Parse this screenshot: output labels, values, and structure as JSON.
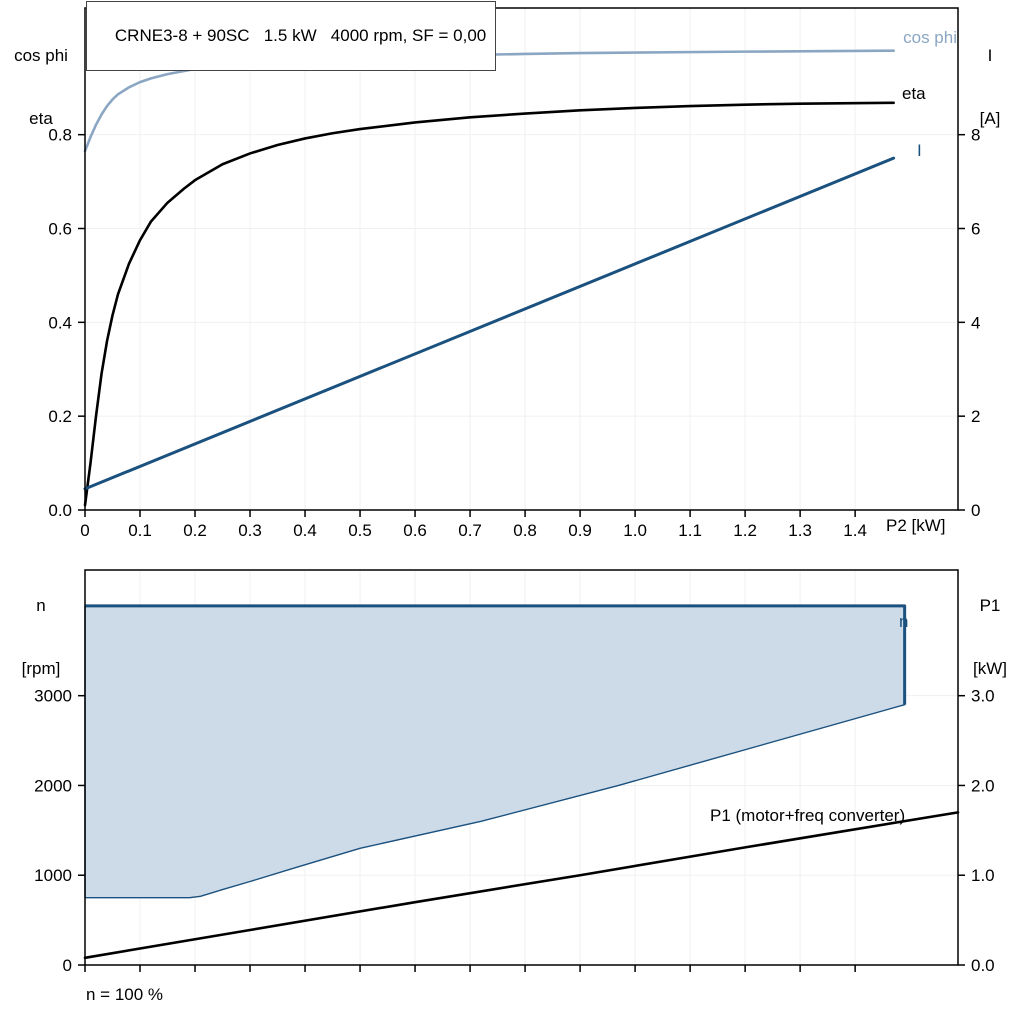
{
  "title": "CRNE3-8 + 90SC   1.5 kW   4000 rpm, SF = 0,00",
  "footnote": "n = 100 %",
  "axis_titles": {
    "top_left_line1": "cos phi",
    "top_left_line2": "eta",
    "top_right_line1": "I",
    "top_right_line2": "[A]",
    "bottom_left_line1": "n",
    "bottom_left_line2": "[rpm]",
    "bottom_right_line1": "P1",
    "bottom_right_line2": "[kW]",
    "x_axis_label": "P2 [kW]"
  },
  "curve_labels": {
    "cos_phi": "cos phi",
    "eta": "eta",
    "current": "I",
    "speed": "n",
    "p1": "P1 (motor+freq converter)"
  },
  "colors": {
    "cos_phi": "#8BA6C3",
    "eta": "#000000",
    "current": "#1A517E",
    "p1": "#000000",
    "region_fill": "#CDDAE8",
    "region_stroke": "#1A517E",
    "axis": "#000000",
    "grid": "#F0F0F0"
  },
  "chart_data": [
    {
      "type": "line",
      "panel": "top",
      "title": "CRNE3-8 + 90SC 1.5 kW 4000 rpm, SF = 0,00",
      "xlabel": "P2 [kW]",
      "ylabel_left": "cos phi, eta",
      "ylabel_right": "I [A]",
      "xlim": [
        0,
        1.587
      ],
      "ylim_left": [
        0,
        1.07
      ],
      "ylim_right": [
        0,
        10.7
      ],
      "grid": true,
      "x_ticks": {
        "values": [
          0,
          0.1,
          0.2,
          0.3,
          0.4,
          0.5,
          0.6,
          0.7,
          0.8,
          0.9,
          1.0,
          1.1,
          1.2,
          1.3,
          1.4
        ],
        "labels": [
          "0",
          "0.1",
          "0.2",
          "0.3",
          "0.4",
          "0.5",
          "0.6",
          "0.7",
          "0.8",
          "0.9",
          "1.0",
          "1.1",
          "1.2",
          "1.3",
          "1.4"
        ]
      },
      "y_ticks_left": {
        "values": [
          0,
          0.2,
          0.4,
          0.6,
          0.8
        ],
        "labels": [
          "0.0",
          "0.2",
          "0.4",
          "0.6",
          "0.8"
        ]
      },
      "y_ticks_right": {
        "values": [
          0,
          2,
          4,
          6,
          8
        ],
        "labels": [
          "0",
          "2",
          "4",
          "6",
          "8"
        ]
      },
      "series": [
        {
          "name": "cos phi",
          "axis": "left",
          "color_key": "cos_phi",
          "width": 2.6,
          "points": [
            [
              0,
              0.765
            ],
            [
              0.01,
              0.795
            ],
            [
              0.02,
              0.821
            ],
            [
              0.03,
              0.843
            ],
            [
              0.04,
              0.861
            ],
            [
              0.05,
              0.875
            ],
            [
              0.06,
              0.886
            ],
            [
              0.08,
              0.901
            ],
            [
              0.1,
              0.912
            ],
            [
              0.12,
              0.92
            ],
            [
              0.15,
              0.929
            ],
            [
              0.2,
              0.94
            ],
            [
              0.25,
              0.947
            ],
            [
              0.3,
              0.952
            ],
            [
              0.4,
              0.959
            ],
            [
              0.5,
              0.964
            ],
            [
              0.6,
              0.967
            ],
            [
              0.7,
              0.97
            ],
            [
              0.8,
              0.972
            ],
            [
              0.9,
              0.974
            ],
            [
              1.0,
              0.975
            ],
            [
              1.2,
              0.977
            ],
            [
              1.47,
              0.979
            ]
          ]
        },
        {
          "name": "eta",
          "axis": "left",
          "color_key": "eta",
          "width": 2.6,
          "points": [
            [
              0,
              0.01
            ],
            [
              0.01,
              0.1
            ],
            [
              0.02,
              0.2
            ],
            [
              0.03,
              0.29
            ],
            [
              0.04,
              0.36
            ],
            [
              0.05,
              0.415
            ],
            [
              0.06,
              0.46
            ],
            [
              0.08,
              0.525
            ],
            [
              0.1,
              0.575
            ],
            [
              0.12,
              0.615
            ],
            [
              0.15,
              0.655
            ],
            [
              0.18,
              0.685
            ],
            [
              0.2,
              0.703
            ],
            [
              0.25,
              0.737
            ],
            [
              0.3,
              0.76
            ],
            [
              0.35,
              0.778
            ],
            [
              0.4,
              0.792
            ],
            [
              0.45,
              0.803
            ],
            [
              0.5,
              0.812
            ],
            [
              0.6,
              0.826
            ],
            [
              0.7,
              0.837
            ],
            [
              0.8,
              0.845
            ],
            [
              0.9,
              0.852
            ],
            [
              1.0,
              0.857
            ],
            [
              1.1,
              0.861
            ],
            [
              1.2,
              0.864
            ],
            [
              1.3,
              0.866
            ],
            [
              1.47,
              0.868
            ]
          ]
        },
        {
          "name": "I",
          "axis": "right",
          "color_key": "current",
          "width": 3,
          "points": [
            [
              0,
              0.45
            ],
            [
              1.47,
              7.5
            ]
          ]
        }
      ]
    },
    {
      "type": "area",
      "panel": "bottom",
      "xlabel": "",
      "ylabel_left": "n [rpm]",
      "ylabel_right": "P1 [kW]",
      "xlim": [
        0,
        1.587
      ],
      "ylim_left": [
        0,
        4400
      ],
      "ylim_right": [
        0,
        4.4
      ],
      "grid": true,
      "x_ticks": {
        "values": [
          0,
          0.1,
          0.2,
          0.3,
          0.4,
          0.5,
          0.6,
          0.7,
          0.8,
          0.9,
          1.0,
          1.1,
          1.2,
          1.3,
          1.4
        ],
        "labels": []
      },
      "y_ticks_left": {
        "values": [
          0,
          1000,
          2000,
          3000
        ],
        "labels": [
          "0",
          "1000",
          "2000",
          "3000"
        ]
      },
      "y_ticks_right": {
        "values": [
          0,
          1,
          2,
          3
        ],
        "labels": [
          "0.0",
          "1.0",
          "2.0",
          "3.0"
        ]
      },
      "region": {
        "name": "n",
        "axis": "left",
        "points": [
          [
            0,
            4000
          ],
          [
            1.49,
            4000
          ],
          [
            1.49,
            2900
          ],
          [
            0.97,
            2000
          ],
          [
            0.72,
            1600
          ],
          [
            0.5,
            1300
          ],
          [
            0.38,
            1080
          ],
          [
            0.3,
            930
          ],
          [
            0.25,
            840
          ],
          [
            0.21,
            765
          ],
          [
            0.19,
            750
          ],
          [
            0,
            750
          ]
        ],
        "edge_points": [
          [
            0,
            4000
          ],
          [
            1.49,
            4000
          ],
          [
            1.49,
            2900
          ]
        ]
      },
      "series": [
        {
          "name": "P1 (motor+freq converter)",
          "axis": "right",
          "color_key": "p1",
          "width": 2.6,
          "points": [
            [
              0,
              0.08
            ],
            [
              0.3,
              0.39
            ],
            [
              0.6,
              0.7
            ],
            [
              0.9,
              1.0
            ],
            [
              1.2,
              1.31
            ],
            [
              1.587,
              1.7
            ]
          ]
        }
      ]
    }
  ]
}
